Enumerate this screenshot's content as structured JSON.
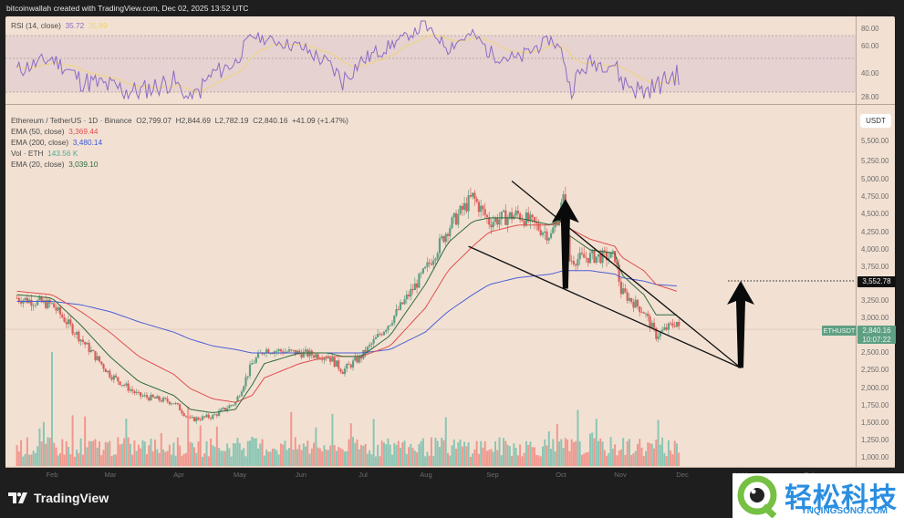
{
  "header": {
    "attribution": "bitcoinwallah created with TradingView.com, Dec 02, 2025 13:52 UTC"
  },
  "colors": {
    "background": "#f2e1d3",
    "up": "#5f9f82",
    "down": "#d9605a",
    "ema20": "#2f6b3a",
    "ema50": "#e04e4e",
    "ema200": "#4c5fd6",
    "rsi": "#8c6bc4",
    "rsi_ma": "#f1d46b",
    "vol_up": "#7fc2b0",
    "vol_down": "#ef8f86"
  },
  "rsi_pane": {
    "label": "RSI (14, close)",
    "value": "35.72",
    "ma_value": "35.89",
    "axis_labels": [
      "80.00",
      "60.00",
      "40.00",
      "28.00"
    ]
  },
  "main_pane": {
    "symbol_line": {
      "title": "Ethereum / TetherUS · 1D · Binance",
      "open": "O2,799.07",
      "high": "H2,844.69",
      "low": "L2,782.19",
      "close": "C2,840.16",
      "change": "+41.09 (+1.47%)"
    },
    "indicators": [
      {
        "label": "EMA (50, close)",
        "value": "3,369.44"
      },
      {
        "label": "EMA (200, close)",
        "value": "3,480.14"
      },
      {
        "label": "Vol · ETH",
        "value": "143.56 K"
      },
      {
        "label": "EMA (20, close)",
        "value": "3,039.10"
      }
    ],
    "currency_button": "USDT",
    "price_axis": [
      "5,500.00",
      "5,250.00",
      "5,000.00",
      "4,750.00",
      "4,500.00",
      "4,250.00",
      "4,000.00",
      "3,750.00",
      "3,250.00",
      "3,000.00",
      "2,500.00",
      "2,250.00",
      "2,000.00",
      "1,750.00",
      "1,500.00",
      "1,250.00",
      "1,000.00"
    ],
    "target_price": "3,552.78",
    "symbol_tag": "ETHUSDT",
    "last_price": "2,840.16",
    "countdown": "10:07:22"
  },
  "time_axis": [
    "Feb",
    "Mar",
    "Apr",
    "May",
    "Jun",
    "Jul",
    "Aug",
    "Sep",
    "Oct",
    "Nov",
    "Dec",
    "2026",
    "Feb"
  ],
  "footer": {
    "brand": "TradingView"
  },
  "watermark": {
    "title": "轻松科技",
    "subtitle": "YNQINGSONG.COM"
  },
  "chart_data": {
    "type": "candlestick",
    "title": "Ethereum / TetherUS · 1D · Binance",
    "pattern": "falling wedge",
    "xlabel": "",
    "ylabel": "USDT",
    "ylim": [
      1000,
      5650
    ],
    "x": [
      "2025-01-15",
      "2025-02-01",
      "2025-02-15",
      "2025-03-01",
      "2025-03-15",
      "2025-04-01",
      "2025-04-09",
      "2025-04-20",
      "2025-05-01",
      "2025-05-09",
      "2025-05-15",
      "2025-06-01",
      "2025-06-15",
      "2025-06-22",
      "2025-07-01",
      "2025-07-15",
      "2025-08-01",
      "2025-08-12",
      "2025-08-24",
      "2025-09-01",
      "2025-09-15",
      "2025-10-01",
      "2025-10-07",
      "2025-10-10",
      "2025-10-20",
      "2025-11-01",
      "2025-11-04",
      "2025-11-15",
      "2025-11-21",
      "2025-12-01",
      "2025-12-02"
    ],
    "series": [
      {
        "name": "ETHUSDT close",
        "values": [
          3300,
          3200,
          2700,
          2200,
          1900,
          1800,
          1550,
          1600,
          1800,
          2350,
          2550,
          2500,
          2450,
          2250,
          2450,
          2950,
          3700,
          4300,
          4750,
          4400,
          4500,
          4200,
          4700,
          3850,
          3900,
          3900,
          3400,
          3100,
          2750,
          2950,
          2840
        ]
      },
      {
        "name": "EMA 20",
        "values": [
          3350,
          3300,
          2900,
          2450,
          2100,
          1900,
          1700,
          1650,
          1700,
          2050,
          2350,
          2500,
          2500,
          2450,
          2450,
          2750,
          3500,
          4100,
          4400,
          4450,
          4450,
          4350,
          4450,
          4200,
          4000,
          3950,
          3650,
          3350,
          3050,
          3050,
          3039
        ]
      },
      {
        "name": "EMA 50",
        "values": [
          3400,
          3350,
          3100,
          2800,
          2450,
          2200,
          2000,
          1850,
          1800,
          1900,
          2150,
          2350,
          2450,
          2450,
          2450,
          2600,
          3150,
          3700,
          4050,
          4250,
          4350,
          4350,
          4400,
          4300,
          4150,
          4050,
          3900,
          3700,
          3500,
          3400,
          3369
        ]
      },
      {
        "name": "EMA 200",
        "values": [
          3250,
          3250,
          3200,
          3100,
          2950,
          2800,
          2700,
          2600,
          2550,
          2500,
          2500,
          2500,
          2500,
          2500,
          2500,
          2550,
          2800,
          3100,
          3350,
          3500,
          3600,
          3650,
          3700,
          3700,
          3700,
          3650,
          3600,
          3550,
          3500,
          3480,
          3480
        ]
      },
      {
        "name": "RSI 14",
        "values": [
          42,
          50,
          36,
          33,
          30,
          36,
          24,
          40,
          47,
          70,
          66,
          59,
          46,
          36,
          48,
          60,
          80,
          58,
          72,
          54,
          49,
          66,
          52,
          32,
          47,
          46,
          36,
          30,
          33,
          40,
          35.72
        ]
      }
    ],
    "annotations": [
      {
        "type": "line",
        "label": "wedge upper trendline",
        "from": [
          "2025-09-12",
          4980
        ],
        "to": [
          "2026-01-01",
          2290
        ]
      },
      {
        "type": "line",
        "label": "wedge lower trendline",
        "from": [
          "2025-08-22",
          4050
        ],
        "to": [
          "2026-01-01",
          2290
        ]
      },
      {
        "type": "arrow",
        "label": "wedge height",
        "from": [
          "2025-10-08",
          3440
        ],
        "to": [
          "2025-10-08",
          4720
        ]
      },
      {
        "type": "arrow",
        "label": "projected target",
        "from": [
          "2026-01-01",
          2290
        ],
        "to": [
          "2026-01-01",
          3552.78
        ]
      },
      {
        "type": "hline",
        "label": "target",
        "value": 3552.78,
        "style": "dotted"
      }
    ],
    "volume": {
      "peak_label": "143.56 K"
    }
  }
}
